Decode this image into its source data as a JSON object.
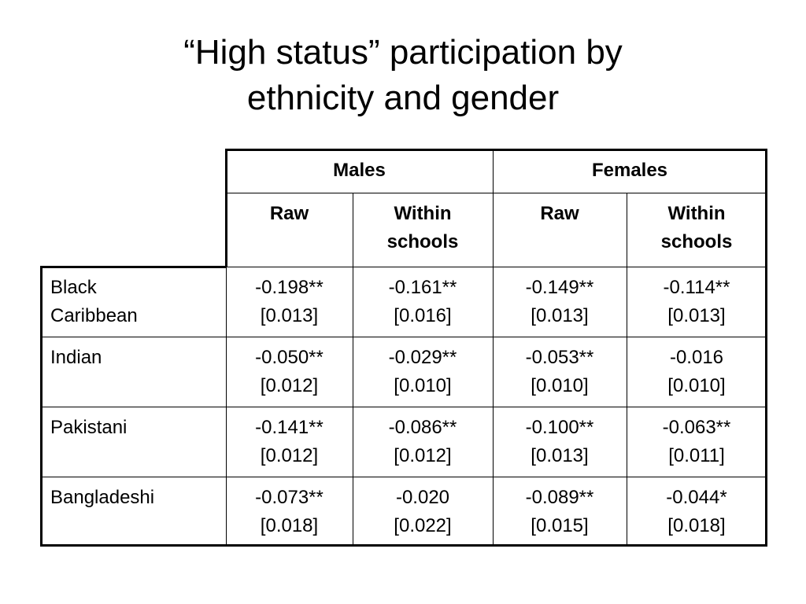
{
  "title": {
    "line1": "“High status” participation by",
    "line2": "ethnicity and gender"
  },
  "table": {
    "group_headers": {
      "males": "Males",
      "females": "Females"
    },
    "sub_headers": {
      "males_raw": "Raw",
      "males_within_line1": "Within",
      "males_within_line2": "schools",
      "females_raw": "Raw",
      "females_within_line1": "Within",
      "females_within_line2": "schools"
    },
    "rows": [
      {
        "label_line1": "Black",
        "label_line2": "Caribbean",
        "cells": [
          {
            "coef": "-0.198**",
            "se": "[0.013]"
          },
          {
            "coef": "-0.161**",
            "se": "[0.016]"
          },
          {
            "coef": "-0.149**",
            "se": "[0.013]"
          },
          {
            "coef": "-0.114**",
            "se": "[0.013]"
          }
        ]
      },
      {
        "label_line1": "Indian",
        "label_line2": "",
        "cells": [
          {
            "coef": "-0.050**",
            "se": "[0.012]"
          },
          {
            "coef": "-0.029**",
            "se": "[0.010]"
          },
          {
            "coef": "-0.053**",
            "se": "[0.010]"
          },
          {
            "coef": "-0.016",
            "se": "[0.010]"
          }
        ]
      },
      {
        "label_line1": "Pakistani",
        "label_line2": "",
        "cells": [
          {
            "coef": "-0.141**",
            "se": "[0.012]"
          },
          {
            "coef": "-0.086**",
            "se": "[0.012]"
          },
          {
            "coef": "-0.100**",
            "se": "[0.013]"
          },
          {
            "coef": "-0.063**",
            "se": "[0.011]"
          }
        ]
      },
      {
        "label_line1": "Bangladeshi",
        "label_line2": "",
        "cells": [
          {
            "coef": "-0.073**",
            "se": "[0.018]"
          },
          {
            "coef": "-0.020",
            "se": "[0.022]"
          },
          {
            "coef": "-0.089**",
            "se": "[0.015]"
          },
          {
            "coef": "-0.044*",
            "se": "[0.018]"
          }
        ]
      }
    ]
  }
}
